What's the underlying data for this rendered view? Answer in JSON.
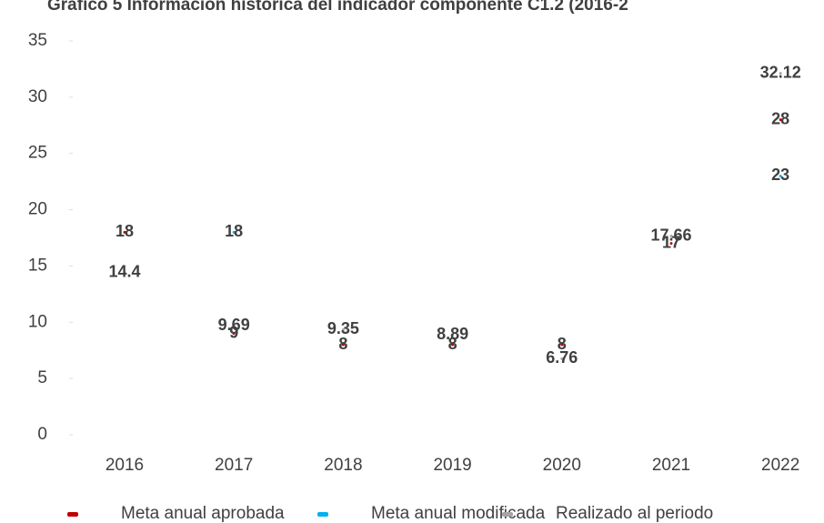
{
  "chart_data": {
    "type": "scatter",
    "title": "Gráfico 5 Información histórica del indicador componente C1.2 (2016-2",
    "categories": [
      "2016",
      "2017",
      "2018",
      "2019",
      "2020",
      "2021",
      "2022"
    ],
    "series": [
      {
        "name": "Meta anual aprobada",
        "color": "#c00000",
        "label_color": "#ed7d31",
        "values": [
          18,
          9,
          8,
          8,
          8,
          17,
          28
        ]
      },
      {
        "name": "Meta anual modificada",
        "color": "#00b0f0",
        "label_color": "#4472c4",
        "values": [
          null,
          18,
          null,
          null,
          null,
          null,
          23
        ]
      },
      {
        "name": "Realizado al periodo",
        "color": "#a5a5a5",
        "label_color": "#a5a5a5",
        "values": [
          14.4,
          9.69,
          9.35,
          8.89,
          6.76,
          17.66,
          32.12
        ]
      }
    ],
    "ylim": [
      0,
      35
    ],
    "yticks": [
      0,
      5,
      10,
      15,
      20,
      25,
      30,
      35
    ],
    "grid": false,
    "legend": "bottom"
  }
}
